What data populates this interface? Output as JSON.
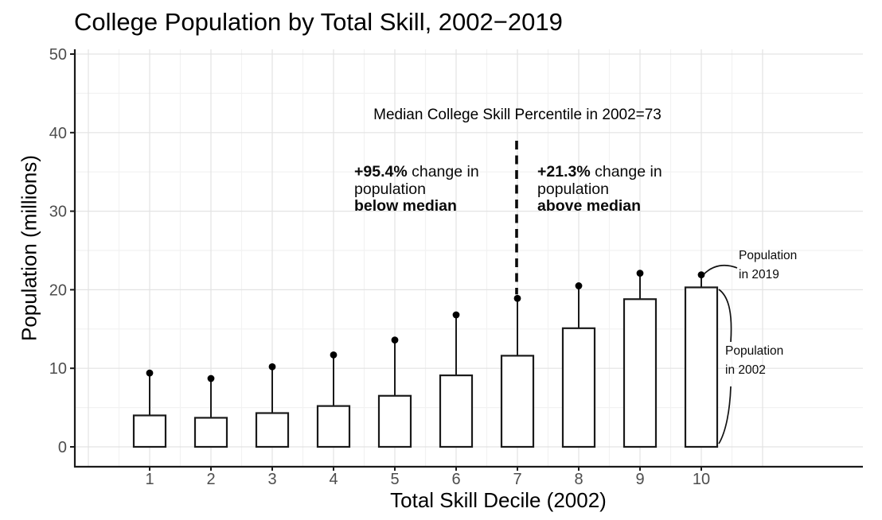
{
  "colors": {
    "bar_fill": "#ffffff",
    "bar_stroke": "#1a1a1a",
    "point": "#000000",
    "stem": "#1a1a1a",
    "grid_major": "#e3e3e3",
    "grid_minor": "#f2f2f2",
    "axis_line": "#1a1a1a",
    "tick_label": "#4d4d4d",
    "median_line": "#0a0a0a"
  },
  "annotations": {
    "median_label": "Median College Skill Percentile in 2002=73",
    "below": {
      "pct": "+95.4%",
      "line1_rest": " change in",
      "line2": "population",
      "line3": "below median"
    },
    "above": {
      "pct": "+21.3%",
      "line1_rest": " change in",
      "line2": "population",
      "line3": "above median"
    },
    "pop2019_line1": "Population",
    "pop2019_line2": "in 2019",
    "pop2002_line1": "Population",
    "pop2002_line2": "in 2002"
  },
  "chart_data": {
    "type": "bar",
    "title": "College Population by Total Skill, 2002−2019",
    "xlabel": "Total Skill Decile (2002)",
    "ylabel": "Population (millions)",
    "categories": [
      1,
      2,
      3,
      4,
      5,
      6,
      7,
      8,
      9,
      10
    ],
    "series": [
      {
        "name": "Population in 2002",
        "mark": "bar",
        "values": [
          4.0,
          3.7,
          4.3,
          5.2,
          6.5,
          9.1,
          11.6,
          15.1,
          18.8,
          20.3
        ]
      },
      {
        "name": "Population in 2019",
        "mark": "point",
        "values": [
          9.4,
          8.7,
          10.2,
          11.7,
          13.6,
          16.8,
          18.9,
          20.5,
          22.1,
          21.9
        ]
      }
    ],
    "ylim": [
      0,
      50
    ],
    "y_ticks": [
      0,
      10,
      20,
      30,
      40,
      50
    ],
    "y_minor_ticks": [
      5,
      15,
      25,
      35,
      45
    ],
    "grid": "on",
    "legend_position": "none",
    "median_decile": 7,
    "median_line_style": "dashed"
  }
}
